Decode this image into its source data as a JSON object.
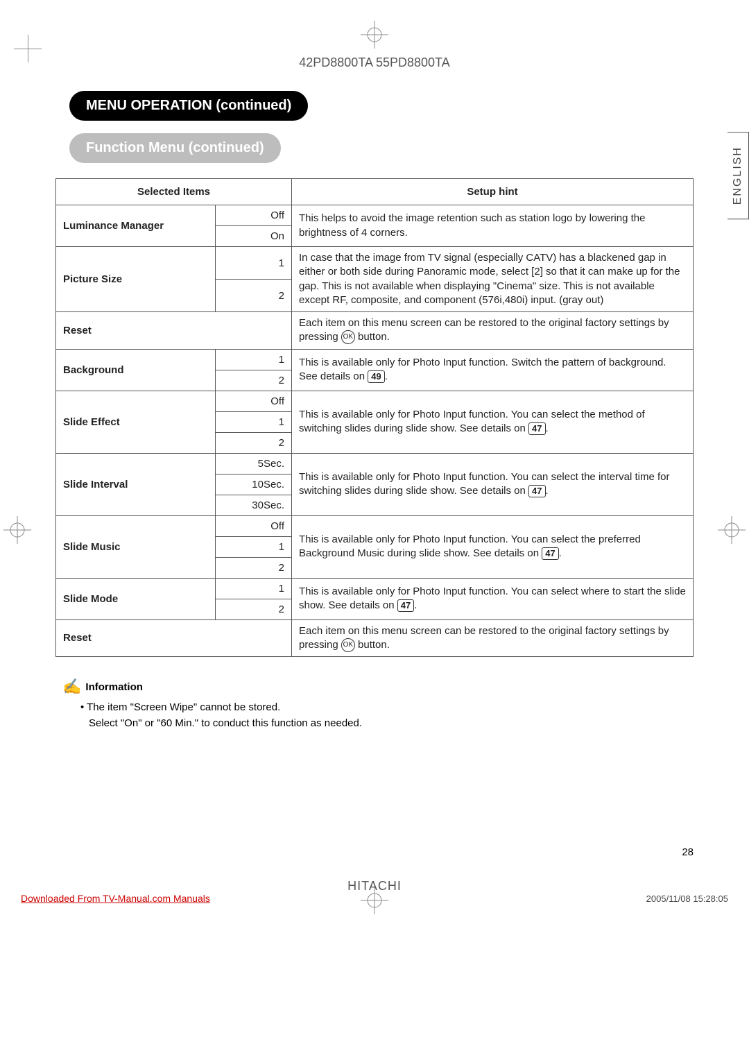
{
  "header": {
    "models": "42PD8800TA  55PD8800TA"
  },
  "section": {
    "title": "MENU OPERATION (continued)"
  },
  "subsection": {
    "title": "Function Menu (continued)"
  },
  "language_tab": "ENGLISH",
  "table": {
    "head": {
      "col1": "Selected Items",
      "col2": "Setup hint"
    },
    "rows": [
      {
        "label": "Luminance Manager",
        "options": [
          "Off",
          "On"
        ],
        "hint": "This helps to avoid the image retention such as station logo by lowering the brightness of 4 corners."
      },
      {
        "label": "Picture Size",
        "options": [
          "1",
          "2"
        ],
        "hint": "In case that the image from TV signal (especially CATV) has a blackened gap in either or both side during Panoramic mode, select [2] so that it can make up for the gap. This is not available when displaying \"Cinema\" size. This is not available except RF, composite, and component (576i,480i) input. (gray out)"
      },
      {
        "label": "Reset",
        "options": [],
        "hint_pre": "Each item on this menu screen can be restored to the original factory settings by pressing ",
        "ok": "OK",
        "hint_post": " button."
      },
      {
        "label": "Background",
        "options": [
          "1",
          "2"
        ],
        "hint_pre": "This is available only for Photo Input function. Switch the pattern of background. See details on ",
        "page_ref": "49",
        "hint_post": "."
      },
      {
        "label": "Slide Effect",
        "options": [
          "Off",
          "1",
          "2"
        ],
        "hint_pre": "This is available only for Photo Input function. You can select the method of switching slides during slide show. See details on ",
        "page_ref": "47",
        "hint_post": "."
      },
      {
        "label": "Slide Interval",
        "options": [
          "5Sec.",
          "10Sec.",
          "30Sec."
        ],
        "hint_pre": "This is available only for Photo Input function. You can select the interval time for switching slides during slide show. See details on ",
        "page_ref": "47",
        "hint_post": "."
      },
      {
        "label": "Slide Music",
        "options": [
          "Off",
          "1",
          "2"
        ],
        "hint_pre": "This is available only for Photo Input function. You can select the preferred Background Music during slide show. See details on ",
        "page_ref": "47",
        "hint_post": "."
      },
      {
        "label": "Slide Mode",
        "options": [
          "1",
          "2"
        ],
        "hint_pre": "This is available only for Photo Input function. You can select where to start the slide show. See details on ",
        "page_ref": "47",
        "hint_post": "."
      },
      {
        "label": "Reset",
        "options": [],
        "hint_pre": "Each item on this menu screen can be restored to the original factory settings by pressing ",
        "ok": "OK",
        "hint_post": " button."
      }
    ]
  },
  "info": {
    "heading": "Information",
    "line1": "• The item \"Screen Wipe\" cannot be stored.",
    "line2": "Select \"On\" or \"60 Min.\" to conduct this function as needed."
  },
  "page_number": "28",
  "brand": "HITACHI",
  "footer": {
    "left": "Downloaded From TV-Manual.com Manuals",
    "right": "2005/11/08   15:28:05"
  },
  "colors": {
    "pill_black": "#000000",
    "pill_gray": "#bdbdbd",
    "text": "#222222",
    "border": "#555555",
    "link_red": "#cc0000"
  }
}
